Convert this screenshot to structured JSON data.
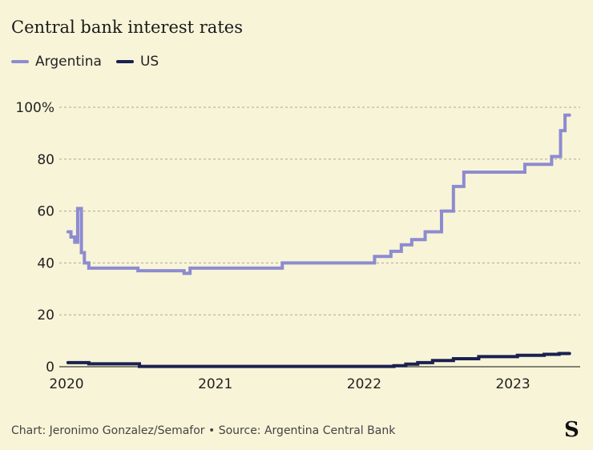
{
  "title": "Central bank interest rates",
  "footer": "Chart: Jeronimo Gonzalez/Semafor • Source: Argentina Central Bank",
  "logo": "S",
  "chart_data": {
    "type": "line",
    "title": "Central bank interest rates",
    "ylim": [
      0,
      100
    ],
    "xlim": [
      2020,
      2023.45
    ],
    "yticks": [
      {
        "v": 0,
        "label": "0"
      },
      {
        "v": 20,
        "label": "20"
      },
      {
        "v": 40,
        "label": "40"
      },
      {
        "v": 60,
        "label": "60"
      },
      {
        "v": 80,
        "label": "80"
      },
      {
        "v": 100,
        "label": "100%"
      }
    ],
    "xticks": [
      {
        "v": 2020,
        "label": "2020"
      },
      {
        "v": 2021,
        "label": "2021"
      },
      {
        "v": 2022,
        "label": "2022"
      },
      {
        "v": 2023,
        "label": "2023"
      }
    ],
    "grid": true,
    "legend": "top-left",
    "series": [
      {
        "name": "Argentina",
        "color": "#8d8bd0",
        "step": true,
        "points": [
          [
            2020.01,
            52
          ],
          [
            2020.03,
            50
          ],
          [
            2020.055,
            48
          ],
          [
            2020.075,
            61
          ],
          [
            2020.1,
            44
          ],
          [
            2020.12,
            40
          ],
          [
            2020.15,
            38
          ],
          [
            2020.48,
            37
          ],
          [
            2020.79,
            36
          ],
          [
            2020.83,
            38
          ],
          [
            2021.45,
            40
          ],
          [
            2022.07,
            42.5
          ],
          [
            2022.18,
            44.5
          ],
          [
            2022.25,
            47
          ],
          [
            2022.32,
            49
          ],
          [
            2022.41,
            52
          ],
          [
            2022.52,
            60
          ],
          [
            2022.6,
            69.5
          ],
          [
            2022.67,
            75
          ],
          [
            2023.08,
            78
          ],
          [
            2023.26,
            81
          ],
          [
            2023.32,
            91
          ],
          [
            2023.35,
            97
          ],
          [
            2023.38,
            97
          ]
        ]
      },
      {
        "name": "US",
        "color": "#1a2150",
        "step": true,
        "points": [
          [
            2020.01,
            1.6
          ],
          [
            2020.15,
            1.1
          ],
          [
            2020.49,
            0.1
          ],
          [
            2022.2,
            0.4
          ],
          [
            2022.28,
            1
          ],
          [
            2022.36,
            1.6
          ],
          [
            2022.46,
            2.4
          ],
          [
            2022.6,
            3.1
          ],
          [
            2022.77,
            3.9
          ],
          [
            2023.03,
            4.4
          ],
          [
            2023.21,
            4.8
          ],
          [
            2023.31,
            5.1
          ],
          [
            2023.38,
            5.1
          ]
        ]
      }
    ]
  }
}
